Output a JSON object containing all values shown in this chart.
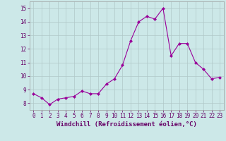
{
  "x": [
    0,
    1,
    2,
    3,
    4,
    5,
    6,
    7,
    8,
    9,
    10,
    11,
    12,
    13,
    14,
    15,
    16,
    17,
    18,
    19,
    20,
    21,
    22,
    23
  ],
  "y": [
    8.7,
    8.4,
    7.9,
    8.3,
    8.4,
    8.5,
    8.9,
    8.7,
    8.7,
    9.4,
    9.8,
    10.8,
    12.6,
    14.0,
    14.4,
    14.2,
    15.0,
    11.5,
    12.4,
    12.4,
    11.0,
    10.5,
    9.8,
    9.9
  ],
  "line_color": "#990099",
  "marker": "D",
  "marker_size": 2.0,
  "bg_color": "#cce8e8",
  "grid_color": "#b0c8c8",
  "xlabel": "Windchill (Refroidissement éolien,°C)",
  "ylim": [
    7.5,
    15.5
  ],
  "xlim": [
    -0.5,
    23.5
  ],
  "yticks": [
    8,
    9,
    10,
    11,
    12,
    13,
    14,
    15
  ],
  "xticks": [
    0,
    1,
    2,
    3,
    4,
    5,
    6,
    7,
    8,
    9,
    10,
    11,
    12,
    13,
    14,
    15,
    16,
    17,
    18,
    19,
    20,
    21,
    22,
    23
  ],
  "tick_fontsize": 5.5,
  "xlabel_fontsize": 6.5,
  "label_color": "#660066",
  "spine_color": "#999999",
  "linewidth": 0.8
}
